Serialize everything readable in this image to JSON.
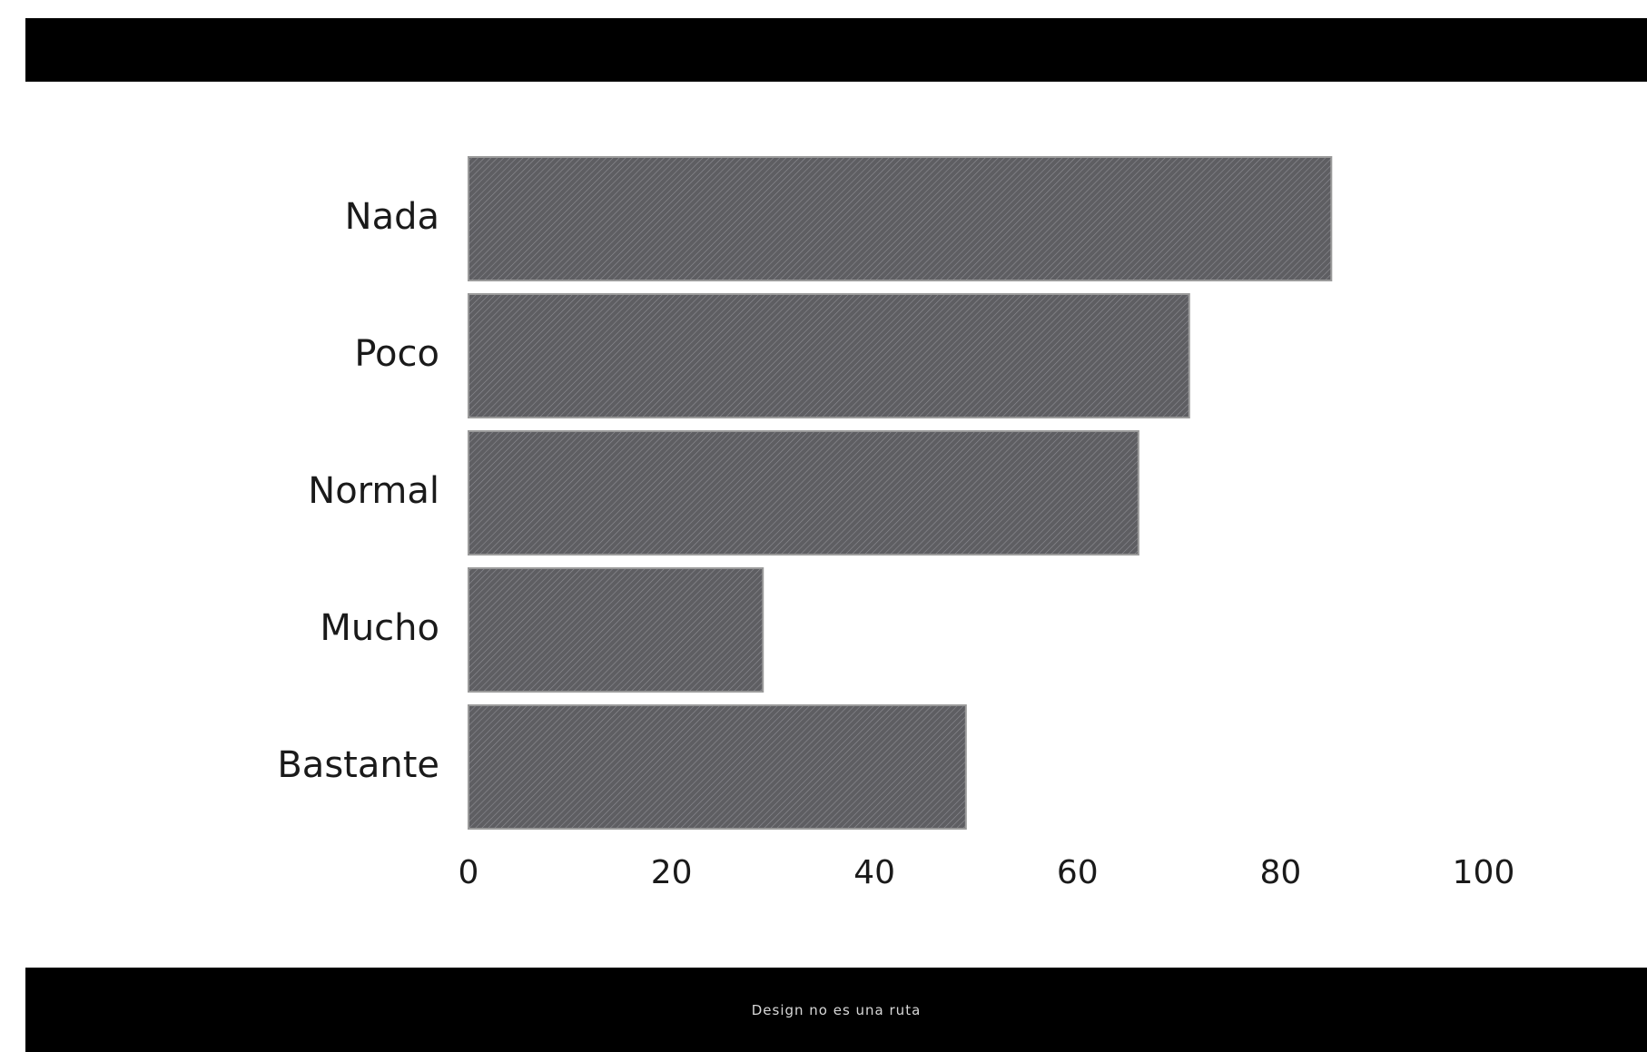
{
  "chart_data": {
    "type": "bar",
    "orientation": "horizontal",
    "categories": [
      "Nada",
      "Poco",
      "Normal",
      "Mucho",
      "Bastante"
    ],
    "values": [
      85,
      71,
      66,
      29,
      49
    ],
    "xlim": [
      0,
      100
    ],
    "xticks": [
      "0",
      "20",
      "40",
      "60",
      "80",
      "100"
    ],
    "title": "",
    "xlabel": "",
    "ylabel": "",
    "grid": false,
    "bar_color": "#5e5e62",
    "bar_hatch_color": "#8e8e94"
  },
  "footer": {
    "text": "Design no es una ruta"
  },
  "colors": {
    "header_bar": "#000000",
    "footer_bar": "#000000",
    "background": "#ffffff"
  }
}
